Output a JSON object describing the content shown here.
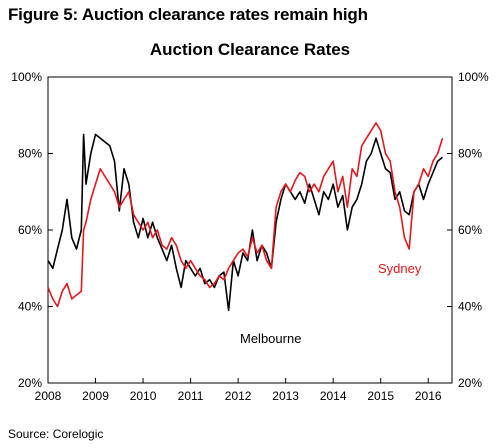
{
  "figure_title": "Figure 5: Auction clearance rates remain high",
  "source": "Source: Corelogic",
  "chart_data": {
    "type": "line",
    "title": "Auction Clearance Rates",
    "xlabel": "",
    "ylabel": "",
    "x_ticks": [
      "2008",
      "2009",
      "2010",
      "2011",
      "2012",
      "2013",
      "2014",
      "2015",
      "2016"
    ],
    "y_ticks_left": [
      "20%",
      "40%",
      "60%",
      "80%",
      "100%"
    ],
    "y_ticks_right": [
      "20%",
      "40%",
      "60%",
      "80%",
      "100%"
    ],
    "xlim": [
      2008.0,
      2016.5
    ],
    "ylim": [
      20,
      100
    ],
    "grid": false,
    "legend": "none",
    "annotations": [
      {
        "text": "Melbourne",
        "series": "Melbourne"
      },
      {
        "text": "Sydney",
        "series": "Sydney"
      }
    ],
    "series": [
      {
        "name": "Melbourne",
        "color": "#000000",
        "x": [
          2008.0,
          2008.1,
          2008.2,
          2008.3,
          2008.4,
          2008.5,
          2008.6,
          2008.7,
          2008.75,
          2008.8,
          2008.9,
          2009.0,
          2009.1,
          2009.2,
          2009.3,
          2009.4,
          2009.5,
          2009.6,
          2009.7,
          2009.8,
          2009.9,
          2010.0,
          2010.1,
          2010.2,
          2010.3,
          2010.4,
          2010.5,
          2010.6,
          2010.7,
          2010.8,
          2010.9,
          2011.0,
          2011.1,
          2011.2,
          2011.3,
          2011.4,
          2011.5,
          2011.6,
          2011.7,
          2011.8,
          2011.9,
          2012.0,
          2012.1,
          2012.2,
          2012.3,
          2012.4,
          2012.5,
          2012.6,
          2012.7,
          2012.8,
          2012.9,
          2013.0,
          2013.1,
          2013.2,
          2013.3,
          2013.4,
          2013.5,
          2013.6,
          2013.7,
          2013.8,
          2013.9,
          2014.0,
          2014.1,
          2014.2,
          2014.3,
          2014.4,
          2014.5,
          2014.6,
          2014.7,
          2014.8,
          2014.9,
          2015.0,
          2015.1,
          2015.2,
          2015.3,
          2015.4,
          2015.5,
          2015.6,
          2015.7,
          2015.8,
          2015.9,
          2016.0,
          2016.1,
          2016.2,
          2016.3
        ],
        "values": [
          52,
          50,
          55,
          60,
          68,
          58,
          55,
          60,
          85,
          72,
          80,
          85,
          84,
          83,
          82,
          78,
          65,
          76,
          72,
          62,
          58,
          63,
          58,
          62,
          58,
          55,
          52,
          56,
          50,
          45,
          52,
          50,
          48,
          50,
          46,
          47,
          45,
          48,
          49,
          39,
          52,
          48,
          54,
          52,
          60,
          52,
          56,
          54,
          50,
          62,
          68,
          72,
          70,
          68,
          70,
          67,
          72,
          68,
          64,
          70,
          68,
          72,
          66,
          69,
          60,
          66,
          68,
          72,
          78,
          80,
          84,
          80,
          76,
          75,
          68,
          70,
          65,
          64,
          70,
          72,
          68,
          72,
          75,
          78,
          79
        ]
      },
      {
        "name": "Sydney",
        "color": "#e0191e",
        "x": [
          2008.0,
          2008.1,
          2008.2,
          2008.3,
          2008.4,
          2008.5,
          2008.6,
          2008.7,
          2008.75,
          2008.8,
          2008.9,
          2009.0,
          2009.1,
          2009.2,
          2009.3,
          2009.4,
          2009.5,
          2009.6,
          2009.7,
          2009.8,
          2009.9,
          2010.0,
          2010.1,
          2010.2,
          2010.3,
          2010.4,
          2010.5,
          2010.6,
          2010.7,
          2010.8,
          2010.9,
          2011.0,
          2011.1,
          2011.2,
          2011.3,
          2011.4,
          2011.5,
          2011.6,
          2011.7,
          2011.8,
          2011.9,
          2012.0,
          2012.1,
          2012.2,
          2012.3,
          2012.4,
          2012.5,
          2012.6,
          2012.7,
          2012.8,
          2012.9,
          2013.0,
          2013.1,
          2013.2,
          2013.3,
          2013.4,
          2013.5,
          2013.6,
          2013.7,
          2013.8,
          2013.9,
          2014.0,
          2014.1,
          2014.2,
          2014.3,
          2014.4,
          2014.5,
          2014.6,
          2014.7,
          2014.8,
          2014.9,
          2015.0,
          2015.1,
          2015.2,
          2015.3,
          2015.4,
          2015.5,
          2015.6,
          2015.7,
          2015.8,
          2015.9,
          2016.0,
          2016.1,
          2016.2,
          2016.3
        ],
        "values": [
          45,
          42,
          40,
          44,
          46,
          42,
          43,
          44,
          60,
          62,
          68,
          72,
          76,
          74,
          72,
          70,
          66,
          68,
          70,
          64,
          62,
          60,
          62,
          58,
          60,
          56,
          55,
          58,
          56,
          52,
          50,
          52,
          50,
          48,
          47,
          45,
          46,
          48,
          47,
          50,
          52,
          54,
          55,
          53,
          58,
          54,
          56,
          52,
          50,
          66,
          70,
          72,
          70,
          73,
          75,
          74,
          70,
          72,
          70,
          74,
          76,
          78,
          70,
          74,
          66,
          76,
          74,
          82,
          84,
          86,
          88,
          86,
          80,
          78,
          70,
          66,
          58,
          55,
          70,
          72,
          76,
          74,
          78,
          80,
          84
        ]
      }
    ]
  }
}
